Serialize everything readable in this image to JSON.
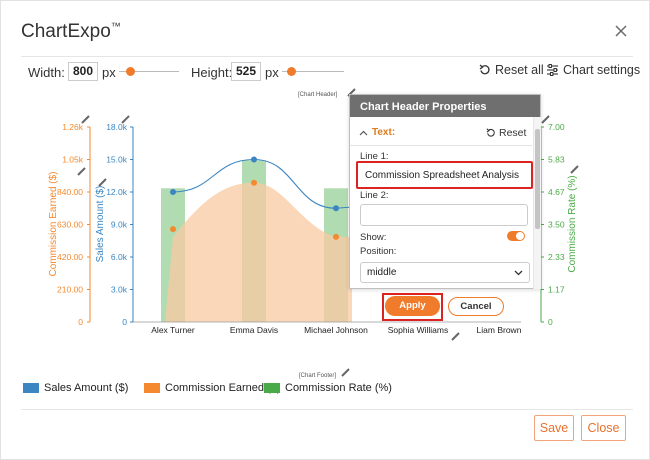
{
  "app": {
    "title": "ChartExpo",
    "trademark": "™"
  },
  "toolbar": {
    "width_label": "Width:",
    "width_value": "800",
    "height_label": "Height:",
    "height_value": "525",
    "unit": "px",
    "reset_all_label": "Reset all",
    "chart_settings_label": "Chart settings"
  },
  "chart_header_tag": "[Chart Header]",
  "chart_footer_tag": "[Chart Footer]",
  "panel": {
    "title": "Chart Header Properties",
    "section_label": "Text:",
    "reset_label": "Reset",
    "line1_label": "Line 1:",
    "line1_value": "Commission Spreadsheet Analysis",
    "line2_label": "Line 2:",
    "line2_value": "",
    "show_label": "Show:",
    "show_on": true,
    "position_label": "Position:",
    "position_value": "middle",
    "apply_label": "Apply",
    "cancel_label": "Cancel"
  },
  "colors": {
    "accent": "#f07b2a",
    "sales": "#3b86c2",
    "commission": "#f5892f",
    "rate": "#4aaa47",
    "rate_bar": "#a9d8a8",
    "commission_area": "#f9caa3"
  },
  "chart_data": {
    "type": "bar",
    "categories": [
      "Alex Turner",
      "Emma Davis",
      "Michael Johnson",
      "Sophia Williams",
      "Liam Brown"
    ],
    "series": [
      {
        "name": "Sales Amount ($)",
        "kind": "line",
        "axis": "sales",
        "values": [
          12000,
          15000,
          10500,
          null,
          null
        ]
      },
      {
        "name": "Commission Earned ($)",
        "kind": "area",
        "axis": "commission",
        "values": [
          600,
          900,
          550,
          null,
          null
        ]
      },
      {
        "name": "Commission Rate (%)",
        "kind": "bar",
        "axis": "rate",
        "values": [
          4.8,
          5.8,
          4.8,
          null,
          null
        ]
      }
    ],
    "axes": {
      "sales": {
        "label": "Sales Amount ($)",
        "ticks": [
          "0",
          "3.0k",
          "6.0k",
          "9.0k",
          "12.0k",
          "15.0k",
          "18.0k"
        ],
        "range": [
          0,
          18000
        ]
      },
      "commission": {
        "label": "Commission Earned ($)",
        "ticks": [
          "0",
          "210.00",
          "420.00",
          "630.00",
          "840.00",
          "1.05k",
          "1.26k"
        ],
        "range": [
          0,
          1260
        ]
      },
      "rate": {
        "label": "Commission Rate (%)",
        "ticks": [
          "0",
          "1.17",
          "2.33",
          "3.50",
          "4.67",
          "5.83",
          "7.00"
        ],
        "range": [
          0,
          7
        ]
      }
    },
    "legend": [
      "Sales Amount ($)",
      "Commission Earned ($)",
      "Commission Rate (%)"
    ],
    "legend_position": "bottom-left"
  },
  "footer": {
    "save_label": "Save",
    "close_label": "Close"
  }
}
